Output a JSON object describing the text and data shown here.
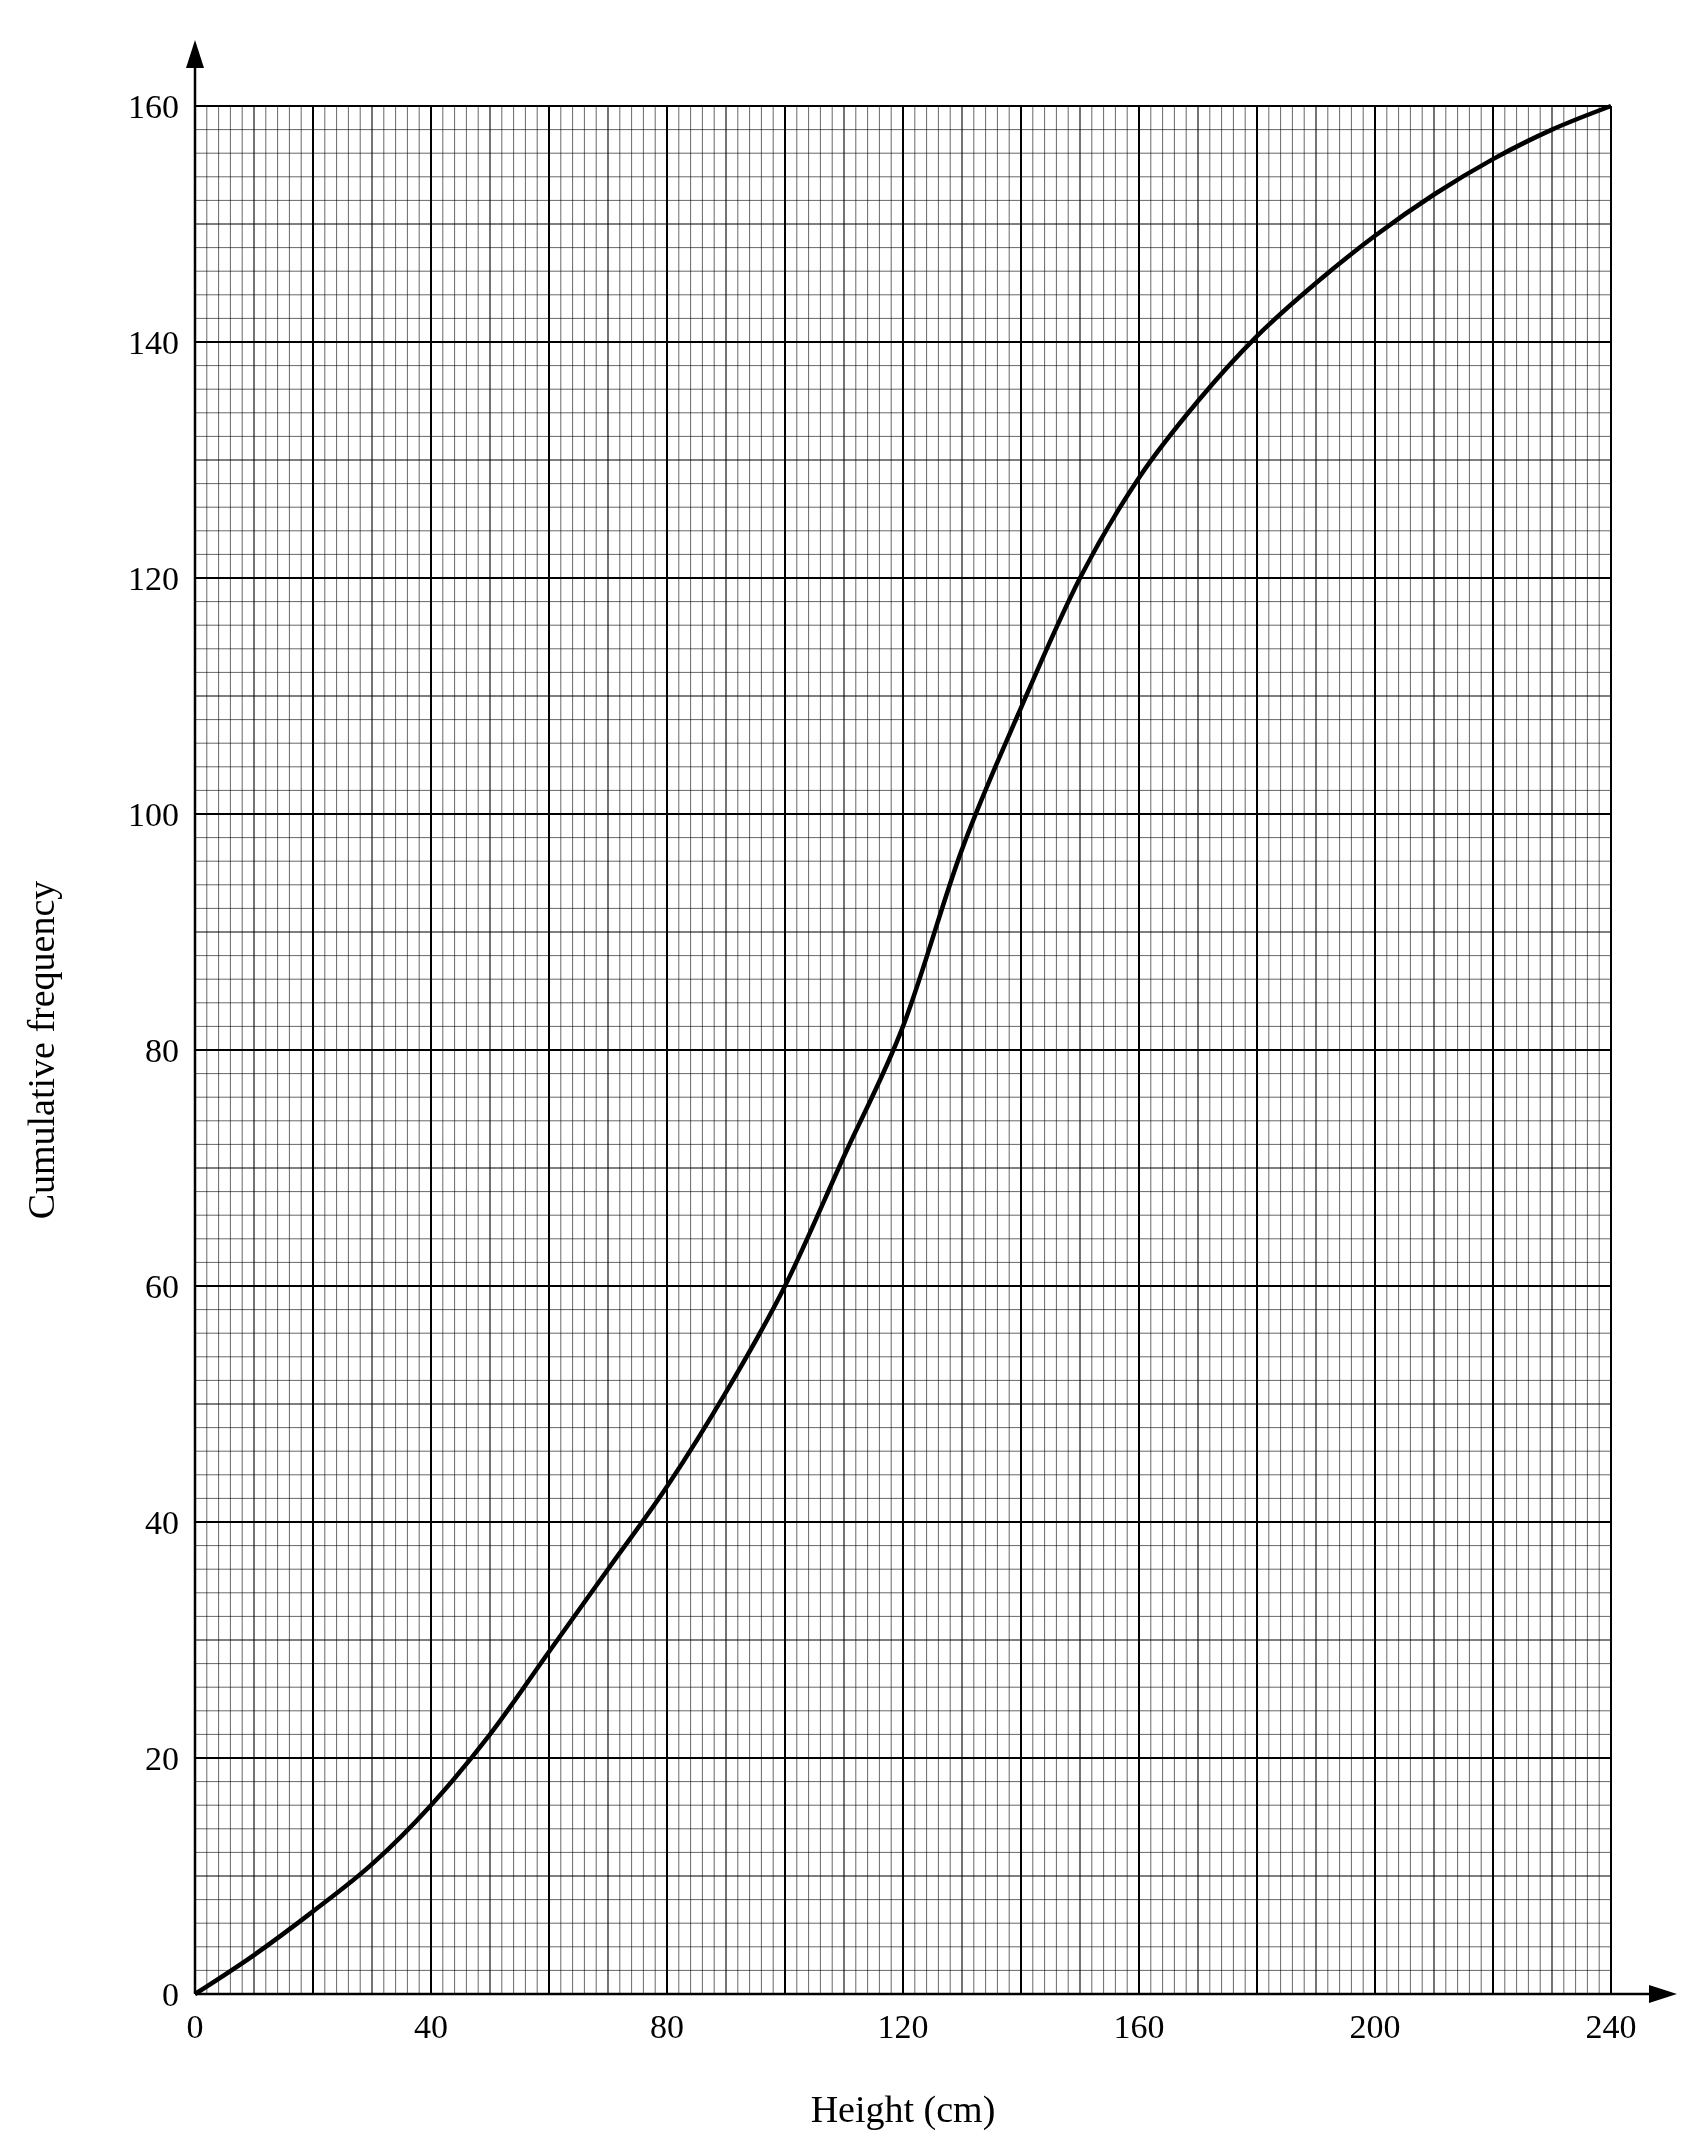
{
  "chart_data": {
    "type": "line",
    "xlabel": "Height (cm)",
    "ylabel": "Cumulative frequency",
    "x": [
      0,
      10,
      20,
      30,
      40,
      50,
      60,
      70,
      80,
      90,
      100,
      110,
      120,
      130,
      140,
      150,
      160,
      170,
      180,
      190,
      200,
      210,
      220,
      230,
      240
    ],
    "series": [
      {
        "color": "#000000",
        "values": [
          0,
          3.3,
          7,
          11,
          16,
          22,
          29,
          36,
          43,
          51,
          60,
          71,
          82,
          97,
          109,
          120,
          128.5,
          135,
          140.5,
          145,
          149,
          152.5,
          155.5,
          158,
          160
        ]
      }
    ],
    "xlim": [
      0,
      240
    ],
    "ylim": [
      0,
      160
    ],
    "xticks": [
      0,
      40,
      80,
      120,
      160,
      200,
      240
    ],
    "yticks": [
      0,
      20,
      40,
      60,
      80,
      100,
      120,
      140,
      160
    ],
    "grid": true,
    "marker": "none",
    "line_style": "solid"
  }
}
